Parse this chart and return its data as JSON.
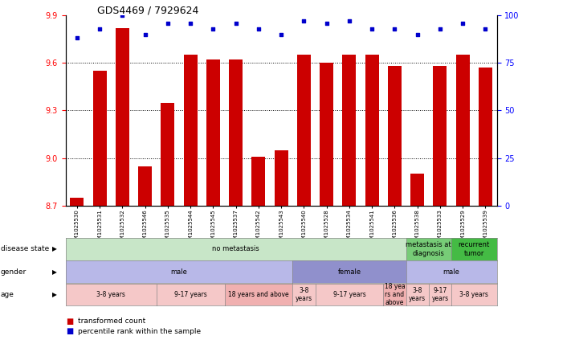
{
  "title": "GDS4469 / 7929624",
  "samples": [
    "GSM1025530",
    "GSM1025531",
    "GSM1025532",
    "GSM1025546",
    "GSM1025535",
    "GSM1025544",
    "GSM1025545",
    "GSM1025537",
    "GSM1025542",
    "GSM1025543",
    "GSM1025540",
    "GSM1025528",
    "GSM1025534",
    "GSM1025541",
    "GSM1025536",
    "GSM1025538",
    "GSM1025533",
    "GSM1025529",
    "GSM1025539"
  ],
  "transformed_count": [
    8.75,
    9.55,
    9.82,
    8.95,
    9.35,
    9.65,
    9.62,
    9.62,
    9.01,
    9.05,
    9.65,
    9.6,
    9.65,
    9.65,
    9.58,
    8.9,
    9.58,
    9.65,
    9.57
  ],
  "percentile_rank": [
    88,
    93,
    100,
    90,
    96,
    96,
    93,
    96,
    93,
    90,
    97,
    96,
    97,
    93,
    93,
    90,
    93,
    96,
    93
  ],
  "ylim_left": [
    8.7,
    9.9
  ],
  "ylim_right": [
    0,
    100
  ],
  "yticks_left": [
    8.7,
    9.0,
    9.3,
    9.6,
    9.9
  ],
  "yticks_right": [
    0,
    25,
    50,
    75,
    100
  ],
  "bar_color": "#cc0000",
  "dot_color": "#0000cc",
  "disease_state_groups": [
    {
      "label": "no metastasis",
      "start": 0,
      "end": 15,
      "color": "#c8e6c8"
    },
    {
      "label": "metastasis at\ndiagnosis",
      "start": 15,
      "end": 17,
      "color": "#77cc77"
    },
    {
      "label": "recurrent\ntumor",
      "start": 17,
      "end": 19,
      "color": "#44bb44"
    }
  ],
  "gender_groups": [
    {
      "label": "male",
      "start": 0,
      "end": 10,
      "color": "#b8b8e8"
    },
    {
      "label": "female",
      "start": 10,
      "end": 15,
      "color": "#9090cc"
    },
    {
      "label": "male",
      "start": 15,
      "end": 19,
      "color": "#b8b8e8"
    }
  ],
  "age_groups": [
    {
      "label": "3-8 years",
      "start": 0,
      "end": 4,
      "color": "#f5c8c8"
    },
    {
      "label": "9-17 years",
      "start": 4,
      "end": 7,
      "color": "#f5c8c8"
    },
    {
      "label": "18 years and above",
      "start": 7,
      "end": 10,
      "color": "#f0b0b0"
    },
    {
      "label": "3-8\nyears",
      "start": 10,
      "end": 11,
      "color": "#f5c8c8"
    },
    {
      "label": "9-17 years",
      "start": 11,
      "end": 14,
      "color": "#f5c8c8"
    },
    {
      "label": "18 yea\nrs and\nabove",
      "start": 14,
      "end": 15,
      "color": "#f0b0b0"
    },
    {
      "label": "3-8\nyears",
      "start": 15,
      "end": 16,
      "color": "#f5c8c8"
    },
    {
      "label": "9-17\nyears",
      "start": 16,
      "end": 17,
      "color": "#f5c8c8"
    },
    {
      "label": "3-8 years",
      "start": 17,
      "end": 19,
      "color": "#f5c8c8"
    }
  ],
  "row_labels": [
    "disease state",
    "gender",
    "age"
  ],
  "n_samples": 19
}
